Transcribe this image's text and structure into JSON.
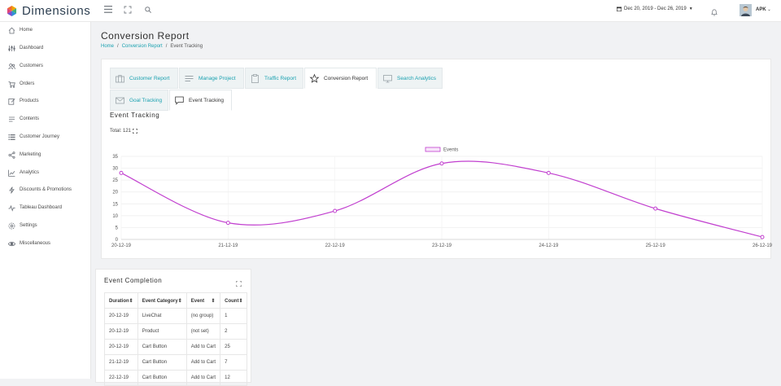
{
  "app": {
    "name": "Dimensions"
  },
  "header": {
    "date_range": "Dec 20, 2019 - Dec 26, 2019",
    "user": "APK"
  },
  "sidebar": {
    "items": [
      {
        "label": "Home",
        "icon": "home-icon"
      },
      {
        "label": "Dashboard",
        "icon": "dashboard-icon"
      },
      {
        "label": "Customers",
        "icon": "users-icon"
      },
      {
        "label": "Orders",
        "icon": "cart-icon"
      },
      {
        "label": "Products",
        "icon": "edit-icon"
      },
      {
        "label": "Contents",
        "icon": "content-icon"
      },
      {
        "label": "Customer Journey",
        "icon": "list-icon"
      },
      {
        "label": "Marketing",
        "icon": "share-icon"
      },
      {
        "label": "Analytics",
        "icon": "chart-icon"
      },
      {
        "label": "Discounts & Promotions",
        "icon": "bolt-icon"
      },
      {
        "label": "Tableau Dashboard",
        "icon": "pulse-icon"
      },
      {
        "label": "Settings",
        "icon": "gear-icon"
      },
      {
        "label": "Miscellaneous",
        "icon": "eye-icon"
      }
    ]
  },
  "page": {
    "title": "Conversion Report",
    "breadcrumb": [
      "Home",
      "Conversion Report",
      "Event Tracking"
    ],
    "tabs": [
      {
        "label": "Customer Report",
        "icon": "briefcase-icon"
      },
      {
        "label": "Manage Project",
        "icon": "lines-icon"
      },
      {
        "label": "Traffic Report",
        "icon": "clipboard-icon"
      },
      {
        "label": "Conversion Report",
        "icon": "star-icon"
      },
      {
        "label": "Search Analytics",
        "icon": "monitor-icon"
      },
      {
        "label": "Goal Tracking",
        "icon": "mail-icon"
      },
      {
        "label": "Event Tracking",
        "icon": "chat-icon"
      }
    ],
    "section_title": "Event Tracking",
    "total_label": "Total: 121"
  },
  "chart_data": {
    "type": "line",
    "x": [
      "20-12-19",
      "21-12-19",
      "22-12-19",
      "23-12-19",
      "24-12-19",
      "25-12-19",
      "26-12-19"
    ],
    "series": [
      {
        "name": "Events",
        "values": [
          28,
          7,
          12,
          32,
          28,
          13,
          1
        ]
      }
    ],
    "ylim": [
      0,
      35
    ],
    "yticks": [
      0,
      5,
      10,
      15,
      20,
      25,
      30,
      35
    ],
    "grid": true,
    "legend": "top-center",
    "color": "#c13fcf"
  },
  "completion": {
    "title": "Event Completion",
    "columns": [
      "Duration",
      "Event Category",
      "Event",
      "Count"
    ],
    "rows": [
      [
        "20-12-19",
        "LiveChat",
        "(no group)",
        "1"
      ],
      [
        "20-12-19",
        "Product",
        "(not set)",
        "2"
      ],
      [
        "20-12-19",
        "Cart Button",
        "Add to Cart",
        "25"
      ],
      [
        "21-12-19",
        "Cart Button",
        "Add to Cart",
        "7"
      ],
      [
        "22-12-19",
        "Cart Button",
        "Add to Cart",
        "12"
      ]
    ]
  }
}
